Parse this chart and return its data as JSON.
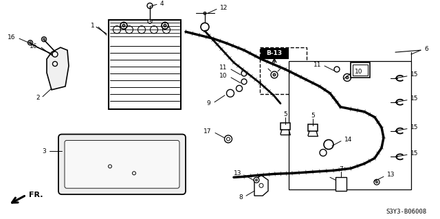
{
  "bg_color": "#ffffff",
  "line_color": "#000000",
  "diagram_ref": "S3Y3-B06008",
  "b13_label": "B-13",
  "fr_label": "FR.",
  "fig_width": 6.4,
  "fig_height": 3.19,
  "dpi": 100
}
